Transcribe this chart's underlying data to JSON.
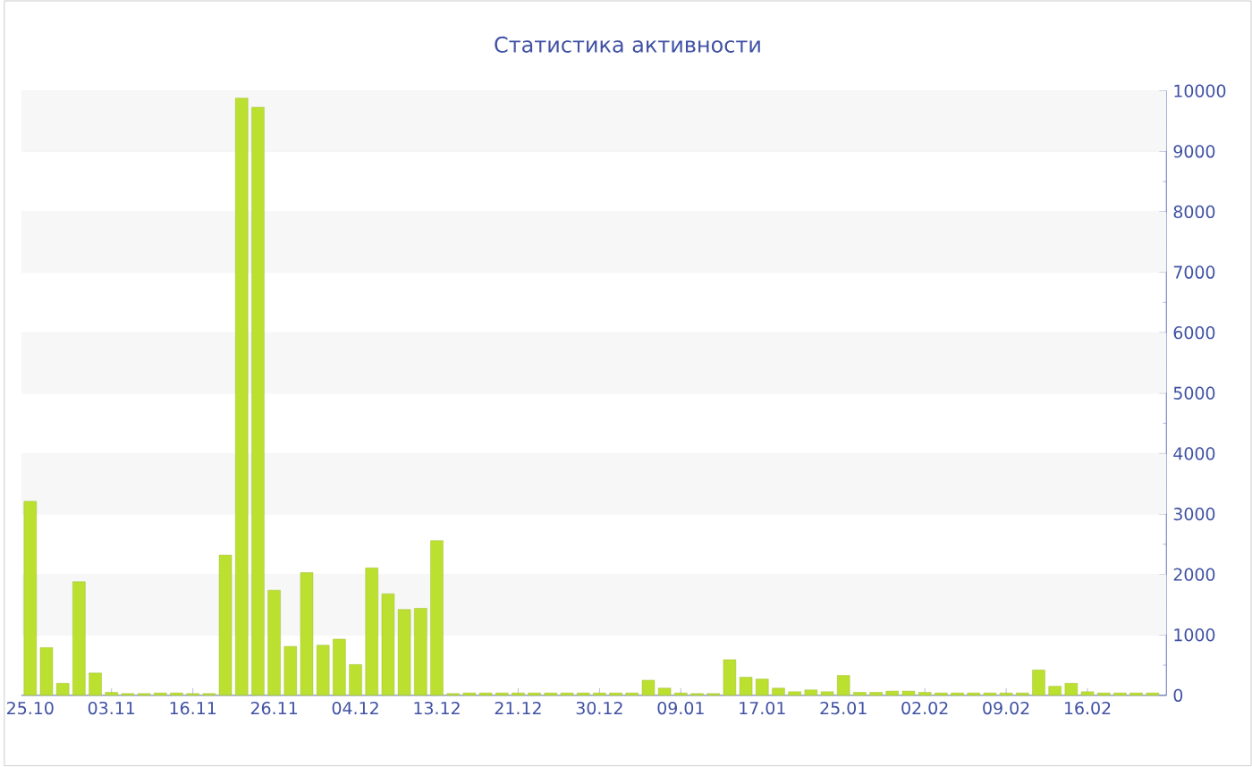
{
  "chart_data": {
    "type": "bar",
    "title": "Статистика активности",
    "categories": [
      "25.10",
      null,
      null,
      null,
      null,
      "03.11",
      null,
      null,
      null,
      null,
      "16.11",
      null,
      null,
      null,
      null,
      "26.11",
      null,
      null,
      null,
      null,
      "04.12",
      null,
      null,
      null,
      null,
      "13.12",
      null,
      null,
      null,
      null,
      "21.12",
      null,
      null,
      null,
      null,
      "30.12",
      null,
      null,
      null,
      null,
      "09.01",
      null,
      null,
      null,
      null,
      "17.01",
      null,
      null,
      null,
      null,
      "25.01",
      null,
      null,
      null,
      null,
      "02.02",
      null,
      null,
      null,
      null,
      "09.02",
      null,
      null,
      null,
      null,
      "16.02",
      null,
      null,
      null,
      null
    ],
    "values": [
      3210,
      790,
      200,
      1880,
      370,
      50,
      30,
      30,
      40,
      40,
      30,
      30,
      2320,
      9880,
      9730,
      1740,
      810,
      2030,
      830,
      930,
      510,
      2110,
      1680,
      1420,
      1440,
      2560,
      30,
      40,
      40,
      40,
      40,
      40,
      40,
      40,
      40,
      40,
      40,
      40,
      250,
      120,
      40,
      30,
      30,
      590,
      300,
      270,
      120,
      60,
      90,
      60,
      330,
      50,
      50,
      70,
      70,
      50,
      40,
      40,
      40,
      40,
      40,
      40,
      420,
      150,
      200,
      60,
      40,
      40,
      40,
      40
    ],
    "color": "#bce030",
    "ylim": [
      0,
      10000
    ],
    "yticks": [
      0,
      1000,
      2000,
      3000,
      4000,
      5000,
      6000,
      7000,
      8000,
      9000,
      10000
    ],
    "grid": "y"
  }
}
